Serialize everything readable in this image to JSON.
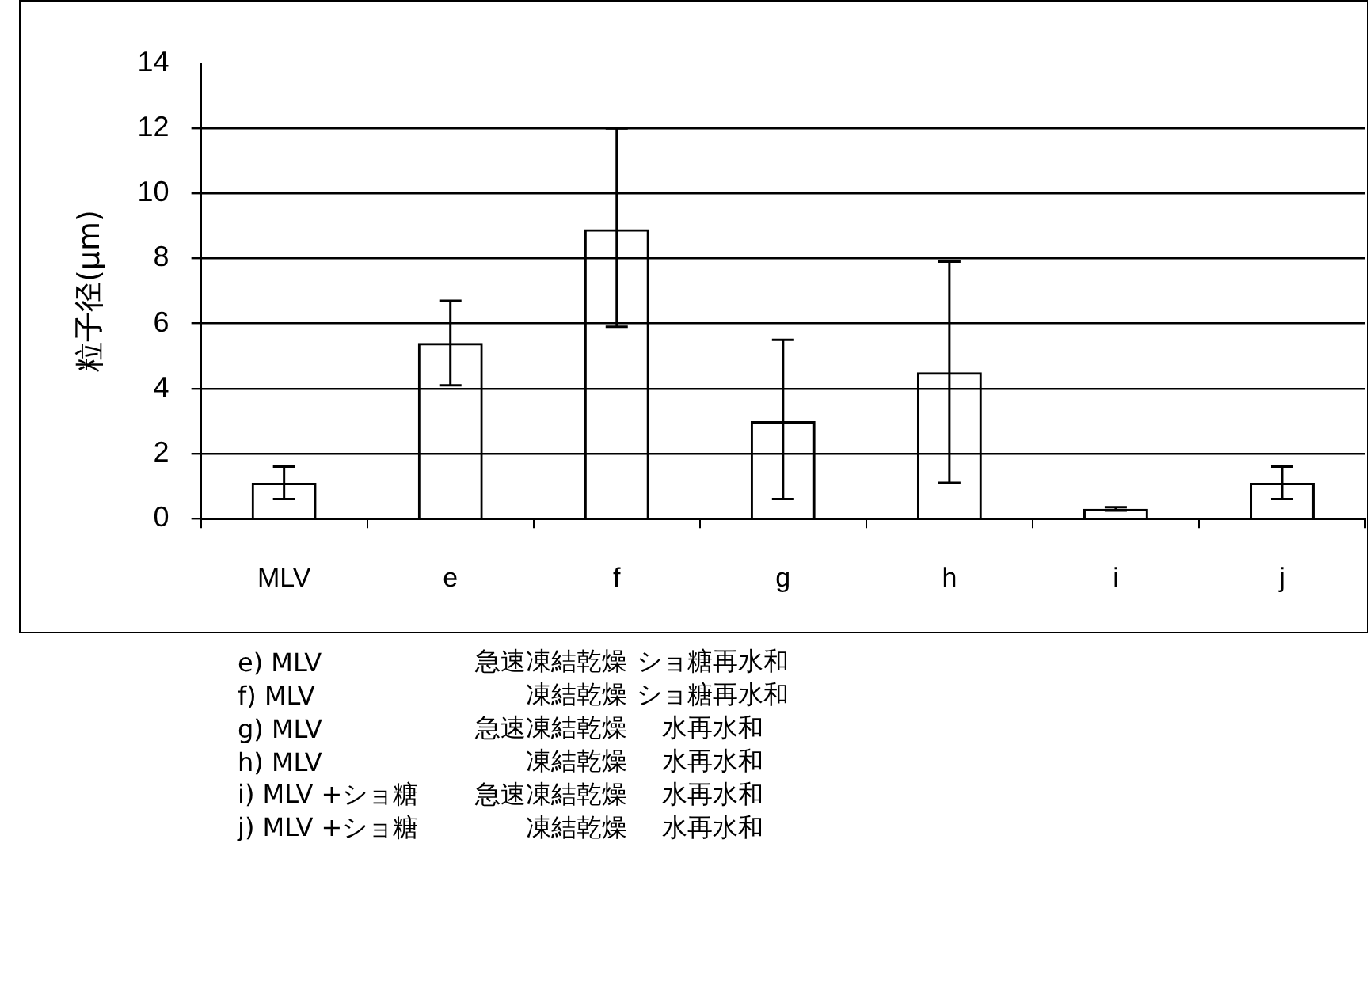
{
  "chart_data": {
    "type": "bar",
    "ylabel": "粒子径(μm)",
    "categories": [
      "MLV",
      "e",
      "f",
      "g",
      "h",
      "i",
      "j"
    ],
    "values": [
      1.1,
      5.4,
      8.9,
      3.0,
      4.5,
      0.3,
      1.1
    ],
    "errors": [
      [
        0.6,
        1.6
      ],
      [
        4.1,
        6.7
      ],
      [
        5.9,
        12.0
      ],
      [
        0.6,
        5.5
      ],
      [
        1.1,
        7.9
      ],
      [
        0.25,
        0.35
      ],
      [
        0.6,
        1.6
      ]
    ],
    "color": "#000000",
    "ylim": [
      0,
      14
    ],
    "yticks": [
      0,
      2,
      4,
      6,
      8,
      10,
      12,
      14
    ],
    "grid": "y",
    "legend": false,
    "annotations": [
      "e) MLV  急速凍結乾燥  ショ糖再水和",
      "f) MLV  凍結乾燥  ショ糖再水和",
      "g) MLV  急速凍結乾燥  水再水和",
      "h) MLV  凍結乾燥  水再水和",
      "i) MLV +ショ糖  急速凍結乾燥  水再水和",
      "j) MLV +ショ糖  凍結乾燥  水再水和"
    ]
  }
}
